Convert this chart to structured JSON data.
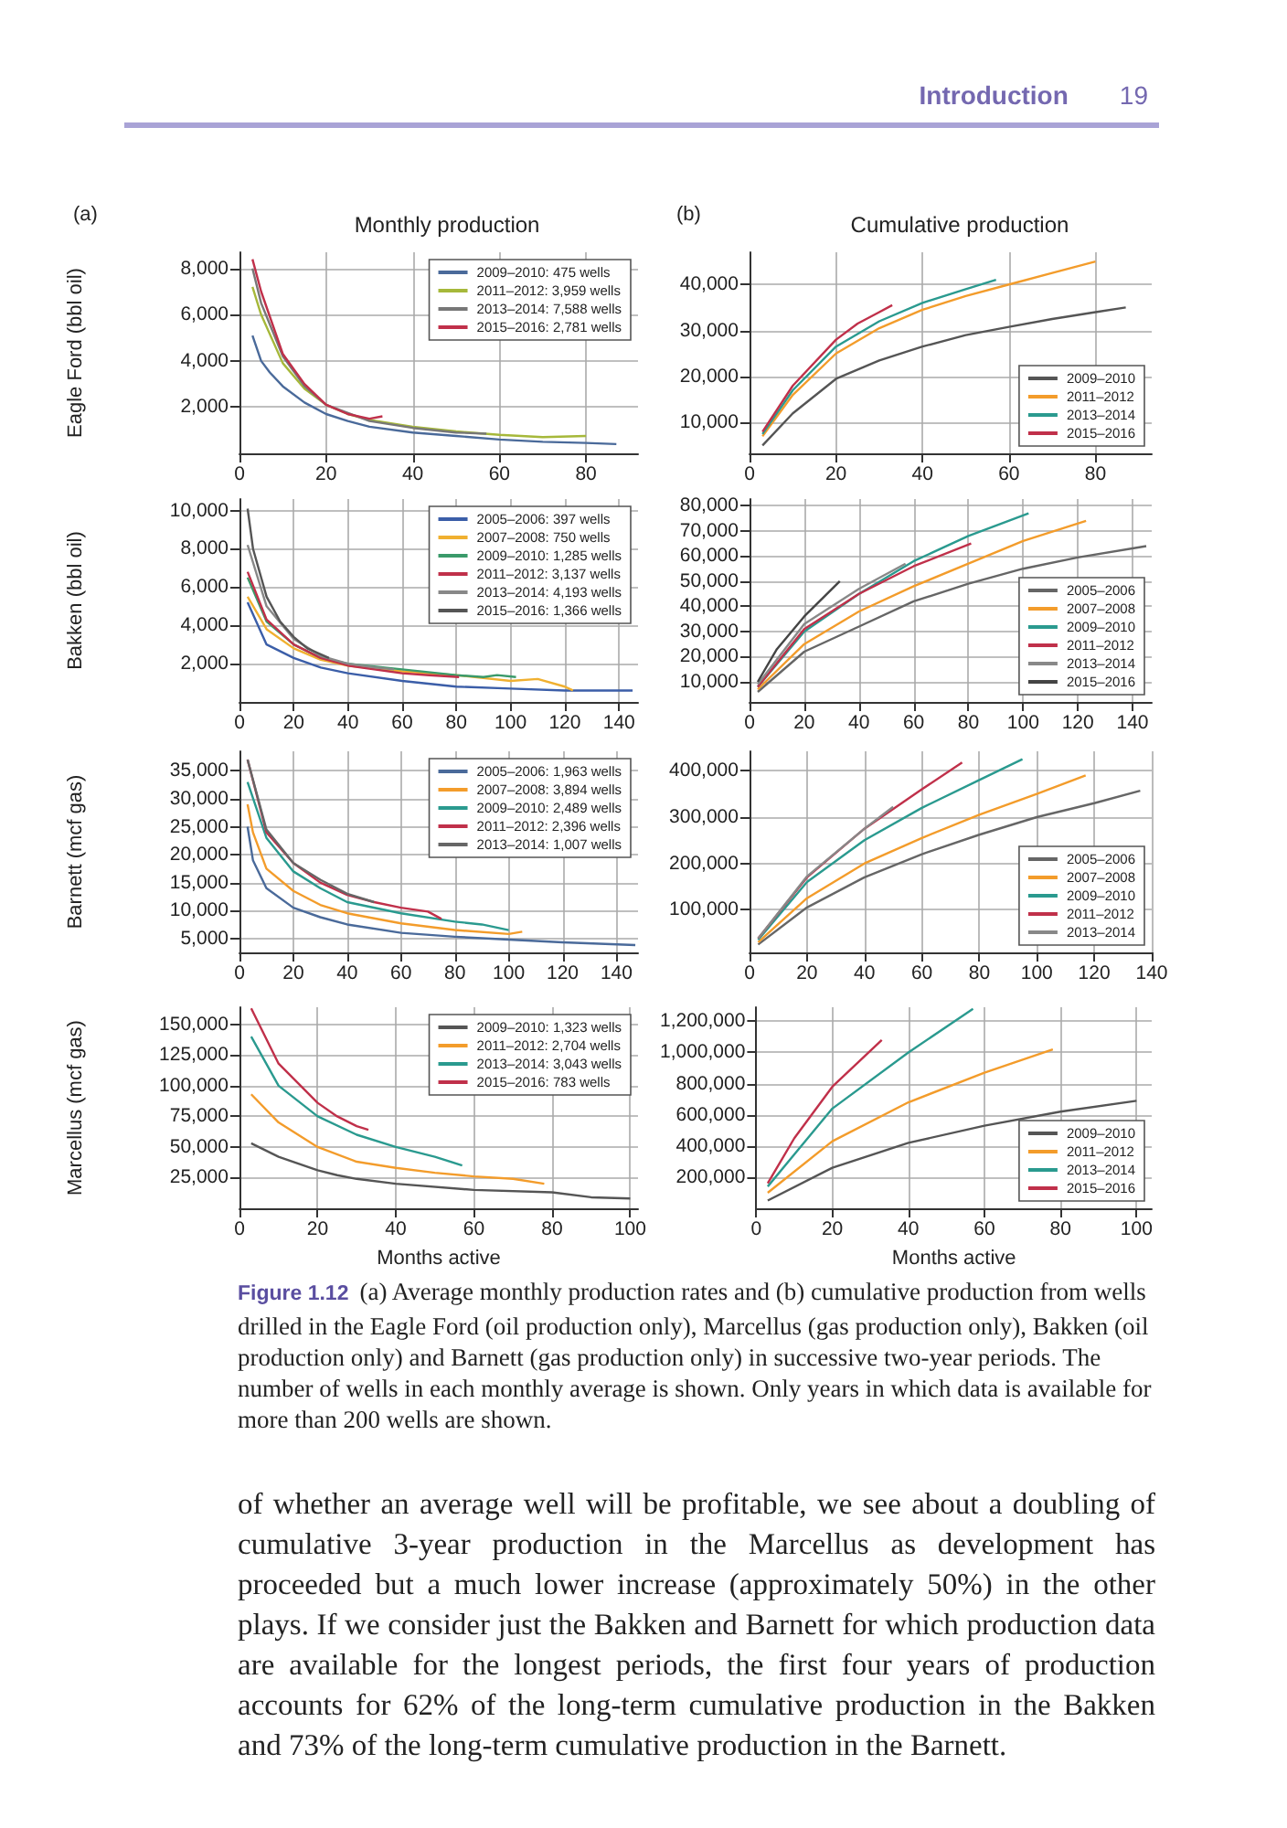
{
  "chart_data": [
    {
      "type": "line",
      "title": "Monthly production",
      "ylabel": "Eagle Ford (bbl oil)",
      "annotations": [
        "Introduction",
        "19",
        "(a)"
      ],
      "xlim": [
        0,
        92
      ],
      "xticks": [
        0,
        20,
        40,
        60,
        80
      ],
      "ylim": [
        0,
        8700
      ],
      "yticks": [
        {
          "value": 2000,
          "label": "2,000"
        },
        {
          "value": 4000,
          "label": "4,000"
        },
        {
          "value": 6000,
          "label": "6,000"
        },
        {
          "value": 8000,
          "label": "8,000"
        }
      ],
      "grid": true,
      "legend": "top right",
      "marker": "none",
      "line_style": "solid",
      "series": [
        {
          "name": "2009–2010: 475 wells",
          "color": "#4a6a9a",
          "x": [
            3,
            5,
            7,
            10,
            15,
            20,
            25,
            30,
            40,
            50,
            60,
            70,
            80,
            87
          ],
          "values": [
            5100,
            4000,
            3500,
            2900,
            2200,
            1700,
            1400,
            1150,
            900,
            750,
            600,
            500,
            450,
            400
          ]
        },
        {
          "name": "2011–2012: 3,959 wells",
          "color": "#a6b83a",
          "x": [
            3,
            5,
            10,
            15,
            20,
            25,
            30,
            40,
            50,
            60,
            70,
            80
          ],
          "values": [
            7200,
            6000,
            3900,
            2800,
            2100,
            1700,
            1450,
            1150,
            950,
            800,
            700,
            750
          ]
        },
        {
          "name": "2013–2014: 7,588 wells",
          "color": "#777777",
          "x": [
            3,
            5,
            10,
            15,
            20,
            30,
            40,
            50,
            57
          ],
          "values": [
            8000,
            6500,
            4200,
            2900,
            2100,
            1400,
            1100,
            900,
            850
          ]
        },
        {
          "name": "2015–2016: 2,781 wells",
          "color": "#c0304a",
          "x": [
            3,
            5,
            10,
            15,
            20,
            25,
            30,
            33
          ],
          "values": [
            8400,
            7000,
            4300,
            3000,
            2100,
            1700,
            1500,
            1600
          ]
        }
      ]
    },
    {
      "type": "line",
      "title": "Cumulative production",
      "annotations": [
        "(b)"
      ],
      "xlim": [
        0,
        93
      ],
      "xticks": [
        0,
        20,
        40,
        60,
        80
      ],
      "ylim": [
        3300,
        47000
      ],
      "yticks": [
        {
          "value": 10000,
          "label": "10,000"
        },
        {
          "value": 20000,
          "label": "20,000"
        },
        {
          "value": 30000,
          "label": "30,000"
        },
        {
          "value": 40000,
          "label": "40,000"
        }
      ],
      "grid": true,
      "legend": "bottom right",
      "marker": "none",
      "line_style": "solid",
      "series": [
        {
          "name": "2009–2010",
          "color": "#555555",
          "x": [
            3,
            10,
            20,
            30,
            40,
            50,
            60,
            70,
            80,
            87
          ],
          "values": [
            5000,
            12000,
            19500,
            23500,
            26500,
            29000,
            30800,
            32500,
            34000,
            35000
          ]
        },
        {
          "name": "2011–2012",
          "color": "#f39c2b",
          "x": [
            3,
            10,
            20,
            30,
            40,
            50,
            60,
            70,
            80
          ],
          "values": [
            7000,
            16000,
            25000,
            30500,
            34500,
            37500,
            40000,
            42500,
            45000
          ]
        },
        {
          "name": "2013–2014",
          "color": "#2a9a8f",
          "x": [
            3,
            10,
            20,
            30,
            40,
            50,
            57
          ],
          "values": [
            7500,
            17000,
            26500,
            32000,
            36000,
            39000,
            41000
          ]
        },
        {
          "name": "2015–2016",
          "color": "#c0304a",
          "x": [
            3,
            10,
            20,
            25,
            30,
            33
          ],
          "values": [
            8000,
            18000,
            28000,
            31500,
            34000,
            35500
          ]
        }
      ]
    },
    {
      "type": "line",
      "ylabel": "Bakken (bbl oil)",
      "xlim": [
        0,
        147
      ],
      "xticks": [
        0,
        20,
        40,
        60,
        80,
        100,
        120,
        140
      ],
      "ylim": [
        0,
        10600
      ],
      "yticks": [
        {
          "value": 2000,
          "label": "2,000"
        },
        {
          "value": 4000,
          "label": "4,000"
        },
        {
          "value": 6000,
          "label": "6,000"
        },
        {
          "value": 8000,
          "label": "8,000"
        },
        {
          "value": 10000,
          "label": "10,000"
        }
      ],
      "grid": true,
      "legend": "top right",
      "marker": "none",
      "line_style": "solid",
      "series": [
        {
          "name": "2005–2006: 397 wells",
          "color": "#3b5ea8",
          "x": [
            3,
            10,
            20,
            30,
            40,
            60,
            80,
            100,
            120,
            145
          ],
          "values": [
            5200,
            3000,
            2300,
            1800,
            1500,
            1100,
            800,
            700,
            600,
            600
          ]
        },
        {
          "name": "2007–2008: 750 wells",
          "color": "#f0b030",
          "x": [
            3,
            10,
            20,
            30,
            40,
            60,
            80,
            100,
            110,
            120,
            123
          ],
          "values": [
            5500,
            3800,
            2800,
            2200,
            1900,
            1600,
            1400,
            1100,
            1200,
            800,
            600
          ]
        },
        {
          "name": "2009–2010: 1,285 wells",
          "color": "#3a9a6a",
          "x": [
            3,
            10,
            20,
            30,
            40,
            60,
            80,
            90,
            95,
            102
          ],
          "values": [
            6500,
            4200,
            3000,
            2300,
            2000,
            1700,
            1400,
            1300,
            1400,
            1300
          ]
        },
        {
          "name": "2011–2012: 3,137 wells",
          "color": "#c0304a",
          "x": [
            3,
            10,
            20,
            30,
            40,
            60,
            70,
            81
          ],
          "values": [
            6800,
            4300,
            3000,
            2300,
            1900,
            1500,
            1400,
            1300
          ]
        },
        {
          "name": "2013–2014: 4,193 wells",
          "color": "#888888",
          "x": [
            3,
            10,
            20,
            30,
            40,
            50,
            57
          ],
          "values": [
            8200,
            5000,
            3300,
            2400,
            2000,
            1800,
            1700
          ]
        },
        {
          "name": "2015–2016: 1,366 wells",
          "color": "#555555",
          "x": [
            3,
            5,
            10,
            15,
            20,
            25,
            33
          ],
          "values": [
            10100,
            8000,
            5500,
            4200,
            3400,
            2800,
            2300
          ]
        }
      ]
    },
    {
      "type": "line",
      "xlim": [
        0,
        147
      ],
      "xticks": [
        0,
        20,
        40,
        60,
        80,
        100,
        120,
        140
      ],
      "ylim": [
        2000,
        82700
      ],
      "yticks": [
        {
          "value": 10000,
          "label": "10,000"
        },
        {
          "value": 20000,
          "label": "20,000"
        },
        {
          "value": 30000,
          "label": "30,000"
        },
        {
          "value": 40000,
          "label": "40,000"
        },
        {
          "value": 50000,
          "label": "50,000"
        },
        {
          "value": 60000,
          "label": "60,000"
        },
        {
          "value": 70000,
          "label": "70,000"
        },
        {
          "value": 80000,
          "label": "80,000"
        }
      ],
      "grid": true,
      "legend": "bottom right",
      "marker": "none",
      "line_style": "solid",
      "series": [
        {
          "name": "2005–2006",
          "color": "#666666",
          "x": [
            3,
            20,
            40,
            60,
            80,
            100,
            120,
            145
          ],
          "values": [
            6000,
            22000,
            32000,
            42000,
            49000,
            55000,
            59500,
            64000
          ]
        },
        {
          "name": "2007–2008",
          "color": "#f39c2b",
          "x": [
            3,
            20,
            40,
            60,
            80,
            100,
            123
          ],
          "values": [
            7000,
            25000,
            38000,
            48000,
            57000,
            66000,
            74000
          ]
        },
        {
          "name": "2009–2010",
          "color": "#2a9a8f",
          "x": [
            3,
            20,
            40,
            60,
            80,
            102
          ],
          "values": [
            8000,
            30000,
            45000,
            58000,
            68000,
            77000
          ]
        },
        {
          "name": "2011–2012",
          "color": "#c0304a",
          "x": [
            3,
            20,
            40,
            60,
            81
          ],
          "values": [
            8000,
            31000,
            45000,
            56000,
            65000
          ]
        },
        {
          "name": "2013–2014",
          "color": "#888888",
          "x": [
            3,
            20,
            40,
            57
          ],
          "values": [
            9000,
            33000,
            47000,
            57000
          ]
        },
        {
          "name": "2015–2016",
          "color": "#444444",
          "x": [
            3,
            10,
            20,
            33
          ],
          "values": [
            10000,
            23000,
            36000,
            50000
          ]
        }
      ]
    },
    {
      "type": "line",
      "ylabel": "Barnett (mcf gas)",
      "xlim": [
        0,
        148
      ],
      "xticks": [
        0,
        20,
        40,
        60,
        80,
        100,
        120,
        140
      ],
      "ylim": [
        2500,
        38500
      ],
      "yticks": [
        {
          "value": 5000,
          "label": "5,000"
        },
        {
          "value": 10000,
          "label": "10,000"
        },
        {
          "value": 15000,
          "label": "15,000"
        },
        {
          "value": 20000,
          "label": "20,000"
        },
        {
          "value": 25000,
          "label": "25,000"
        },
        {
          "value": 30000,
          "label": "30,000"
        },
        {
          "value": 35000,
          "label": "35,000"
        }
      ],
      "grid": true,
      "legend": "top right",
      "marker": "none",
      "line_style": "solid",
      "series": [
        {
          "name": "2005–2006: 1,963 wells",
          "color": "#4a6a9a",
          "x": [
            3,
            5,
            10,
            20,
            30,
            40,
            60,
            80,
            100,
            120,
            147
          ],
          "values": [
            25000,
            19000,
            14000,
            10500,
            8800,
            7500,
            6000,
            5300,
            4800,
            4300,
            3800
          ]
        },
        {
          "name": "2007–2008: 3,894 wells",
          "color": "#f39c2b",
          "x": [
            3,
            5,
            10,
            20,
            30,
            40,
            60,
            80,
            100,
            105
          ],
          "values": [
            29000,
            24000,
            17500,
            13500,
            11000,
            9500,
            7700,
            6500,
            5800,
            6200
          ]
        },
        {
          "name": "2009–2010: 2,489 wells",
          "color": "#2a9a8f",
          "x": [
            3,
            10,
            20,
            30,
            40,
            60,
            80,
            90,
            100
          ],
          "values": [
            33000,
            23000,
            17000,
            14000,
            11500,
            9500,
            8000,
            7500,
            6500
          ]
        },
        {
          "name": "2011–2012: 2,396 wells",
          "color": "#c0304a",
          "x": [
            3,
            10,
            20,
            30,
            40,
            50,
            60,
            70,
            75
          ],
          "values": [
            37000,
            24000,
            18500,
            15000,
            12800,
            11500,
            10500,
            9800,
            8500
          ]
        },
        {
          "name": "2013–2014: 1,007 wells",
          "color": "#666666",
          "x": [
            3,
            10,
            20,
            30,
            40,
            50
          ],
          "values": [
            37000,
            24500,
            18500,
            15500,
            13000,
            11500
          ]
        }
      ]
    },
    {
      "type": "line",
      "xlim": [
        0,
        140
      ],
      "xticks": [
        0,
        20,
        40,
        60,
        80,
        100,
        120,
        140
      ],
      "ylim": [
        8000,
        442000
      ],
      "yticks": [
        {
          "value": 100000,
          "label": "100,000"
        },
        {
          "value": 200000,
          "label": "200,000"
        },
        {
          "value": 300000,
          "label": "300,000"
        },
        {
          "value": 400000,
          "label": "400,000"
        }
      ],
      "grid": true,
      "legend": "bottom right",
      "marker": "none",
      "line_style": "solid",
      "series": [
        {
          "name": "2005–2006",
          "color": "#666666",
          "x": [
            3,
            20,
            40,
            60,
            80,
            100,
            120,
            136
          ],
          "values": [
            25000,
            105000,
            170000,
            220000,
            262000,
            300000,
            330000,
            357000
          ]
        },
        {
          "name": "2007–2008",
          "color": "#f39c2b",
          "x": [
            3,
            20,
            40,
            60,
            80,
            100,
            117
          ],
          "values": [
            30000,
            125000,
            200000,
            255000,
            305000,
            350000,
            390000
          ]
        },
        {
          "name": "2009–2010",
          "color": "#2a9a8f",
          "x": [
            3,
            20,
            40,
            60,
            80,
            95
          ],
          "values": [
            35000,
            160000,
            250000,
            320000,
            380000,
            425000
          ]
        },
        {
          "name": "2011–2012",
          "color": "#c0304a",
          "x": [
            3,
            20,
            40,
            60,
            74
          ],
          "values": [
            38000,
            170000,
            275000,
            360000,
            418000
          ]
        },
        {
          "name": "2013–2014",
          "color": "#888888",
          "x": [
            3,
            20,
            40,
            50
          ],
          "values": [
            38000,
            172000,
            275000,
            322000
          ]
        }
      ]
    },
    {
      "type": "line",
      "ylabel": "Marcellus (mcf gas)",
      "xlabel": "Months active",
      "xlim": [
        0,
        102
      ],
      "xticks": [
        0,
        20,
        40,
        60,
        80,
        100
      ],
      "ylim": [
        0,
        164000
      ],
      "yticks": [
        {
          "value": 25000,
          "label": "25,000"
        },
        {
          "value": 50000,
          "label": "50,000"
        },
        {
          "value": 75000,
          "label": "75,000"
        },
        {
          "value": 100000,
          "label": "100,000"
        },
        {
          "value": 125000,
          "label": "125,000"
        },
        {
          "value": 150000,
          "label": "150,000"
        }
      ],
      "grid": true,
      "legend": "top right",
      "marker": "none",
      "line_style": "solid",
      "series": [
        {
          "name": "2009–2010: 1,323 wells",
          "color": "#555555",
          "x": [
            3,
            10,
            20,
            25,
            30,
            40,
            60,
            80,
            90,
            100
          ],
          "values": [
            53000,
            42000,
            31000,
            27000,
            24000,
            20000,
            15000,
            13000,
            9000,
            8000
          ]
        },
        {
          "name": "2011–2012: 2,704 wells",
          "color": "#f39c2b",
          "x": [
            3,
            10,
            20,
            30,
            40,
            50,
            60,
            70,
            78
          ],
          "values": [
            93000,
            70000,
            50000,
            38000,
            33000,
            29000,
            26000,
            24000,
            20000
          ]
        },
        {
          "name": "2013–2014: 3,043 wells",
          "color": "#2a9a8f",
          "x": [
            3,
            10,
            20,
            30,
            40,
            50,
            57
          ],
          "values": [
            140000,
            100000,
            75000,
            60000,
            50000,
            42000,
            35000
          ]
        },
        {
          "name": "2015–2016: 783 wells",
          "color": "#c0304a",
          "x": [
            3,
            10,
            20,
            25,
            30,
            33
          ],
          "values": [
            163000,
            118000,
            86000,
            75000,
            67000,
            64000
          ]
        }
      ]
    },
    {
      "type": "line",
      "xlabel": "Months active",
      "annotations": [
        "Figure 1.12",
        "(a) Average monthly production rates and (b) cumulative production from wells drilled in the Eagle Ford (oil production only), Marcellus (gas production only), Bakken (oil production only) and Barnett (gas production only) in successive two-year periods. The number of wells in each monthly average is shown. Only years in which data is available for more than 200 wells are shown.",
        "of whether an average well will be profitable, we see about a doubling of cumulative 3-year production in the Marcellus as development has proceeded but a much lower increase (approximately 50%) in the other plays. If we consider just the Bakken and Barnett for which production data are available for the longest periods, the first four years of production accounts for 62% of the long-term cumulative production in the Bakken and 73% of the long-term cumulative production in the Barnett."
      ],
      "xlim": [
        0,
        104
      ],
      "xticks": [
        0,
        20,
        40,
        60,
        80,
        100
      ],
      "ylim": [
        0,
        1290000
      ],
      "yticks": [
        {
          "value": 200000,
          "label": "200,000"
        },
        {
          "value": 400000,
          "label": "400,000"
        },
        {
          "value": 600000,
          "label": "600,000"
        },
        {
          "value": 800000,
          "label": "800,000"
        },
        {
          "value": 1000000,
          "label": "1,000,000"
        },
        {
          "value": 1200000,
          "label": "1,200,000"
        }
      ],
      "grid": true,
      "legend": "bottom right",
      "marker": "none",
      "line_style": "solid",
      "series": [
        {
          "name": "2009–2010",
          "color": "#555555",
          "x": [
            3,
            20,
            40,
            60,
            80,
            100
          ],
          "values": [
            50000,
            260000,
            420000,
            530000,
            620000,
            690000
          ]
        },
        {
          "name": "2011–2012",
          "color": "#f39c2b",
          "x": [
            3,
            20,
            40,
            60,
            78
          ],
          "values": [
            100000,
            430000,
            680000,
            870000,
            1020000
          ]
        },
        {
          "name": "2013–2014",
          "color": "#2a9a8f",
          "x": [
            3,
            20,
            40,
            57
          ],
          "values": [
            140000,
            640000,
            1000000,
            1280000
          ]
        },
        {
          "name": "2015–2016",
          "color": "#c0304a",
          "x": [
            3,
            10,
            20,
            33
          ],
          "values": [
            160000,
            450000,
            780000,
            1080000
          ]
        }
      ]
    }
  ]
}
